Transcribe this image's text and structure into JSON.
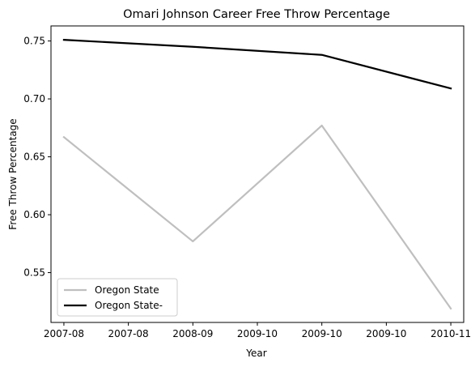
{
  "chart_data": {
    "type": "line",
    "title": "Omari Johnson Career Free Throw Percentage",
    "xlabel": "Year",
    "ylabel": "Free Throw Percentage",
    "x": [
      0,
      1,
      2,
      3
    ],
    "xlim": [
      -0.1,
      3.1
    ],
    "xticks": [
      0,
      0.5,
      1,
      1.5,
      2,
      2.5,
      3
    ],
    "xtick_labels": [
      "2007-08",
      "2007-08",
      "2008-09",
      "2009-10",
      "2009-10",
      "2009-10",
      "2010-11"
    ],
    "ylim": [
      0.507,
      0.763
    ],
    "yticks": [
      0.55,
      0.6,
      0.65,
      0.7,
      0.75
    ],
    "ytick_labels": [
      "0.55",
      "0.60",
      "0.65",
      "0.70",
      "0.75"
    ],
    "grid": false,
    "legend_position": "lower-left",
    "series": [
      {
        "name": "Oregon State",
        "color": "#bfbfbf",
        "values": [
          0.667,
          0.577,
          0.677,
          0.519
        ]
      },
      {
        "name": "Oregon State-",
        "color": "#000000",
        "values": [
          0.751,
          0.745,
          0.738,
          0.709
        ]
      }
    ]
  }
}
